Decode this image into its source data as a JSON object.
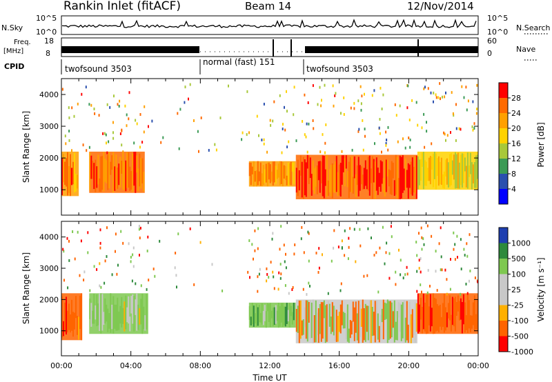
{
  "header": {
    "station": "Rankin Inlet (fitACF)",
    "beam": "Beam 14",
    "date": "12/Nov/2014"
  },
  "top_panels": {
    "nsky": {
      "label": "N.Sky",
      "ticks": [
        "10^5",
        "10^0"
      ]
    },
    "nsearch": {
      "label": "N.Search",
      "ticks": [
        "10^5",
        "10^0"
      ]
    },
    "freq": {
      "label_line1": "Freq.",
      "label_line2": "[MHz]",
      "ticks": [
        "18",
        "8"
      ]
    },
    "nave": {
      "label": "Nave",
      "ticks": [
        "60",
        "0"
      ]
    },
    "cpid": {
      "label": "CPID",
      "segments": [
        {
          "name": "twofsound 3503",
          "start": 0.0,
          "end": 8.0
        },
        {
          "name": "normal (fast) 151",
          "start": 8.0,
          "end": 14.0
        },
        {
          "name": "twofsound 3503",
          "start": 14.0,
          "end": 24.0
        }
      ]
    }
  },
  "chart_data": [
    {
      "type": "heatmap",
      "name": "power-panel",
      "title": "",
      "xlabel": "",
      "ylabel": "Slant Range [km]",
      "xlim": [
        0,
        24
      ],
      "ylim": [
        200,
        4500
      ],
      "yticks": [
        "1000",
        "2000",
        "3000",
        "4000"
      ],
      "colorbar": {
        "label": "Power [dB]",
        "ticks": [
          "28",
          "24",
          "20",
          "16",
          "12",
          "8",
          "4"
        ],
        "colors": [
          "#ff0000",
          "#ff6a00",
          "#ffa000",
          "#ffd200",
          "#a8c83a",
          "#3b9a55",
          "#2a4fae",
          "#0000ff"
        ]
      },
      "regions": [
        {
          "t0": 0.0,
          "t1": 1.0,
          "r0": 800,
          "r1": 2200,
          "value": 22
        },
        {
          "t0": 1.6,
          "t1": 4.8,
          "r0": 900,
          "r1": 2200,
          "value": 24
        },
        {
          "t0": 10.8,
          "t1": 13.5,
          "r0": 1100,
          "r1": 1900,
          "value": 20
        },
        {
          "t0": 13.5,
          "t1": 20.5,
          "r0": 700,
          "r1": 2100,
          "value": 26
        },
        {
          "t0": 20.5,
          "t1": 24.0,
          "r0": 1000,
          "r1": 2200,
          "value": 16
        }
      ]
    },
    {
      "type": "heatmap",
      "name": "velocity-panel",
      "title": "",
      "xlabel": "Time UT",
      "ylabel": "Slant Range [km]",
      "xlim": [
        0,
        24
      ],
      "ylim": [
        200,
        4500
      ],
      "xticks": [
        "00:00",
        "04:00",
        "08:00",
        "12:00",
        "16:00",
        "20:00",
        "00:00"
      ],
      "yticks": [
        "1000",
        "2000",
        "3000",
        "4000"
      ],
      "colorbar": {
        "label": "Velocity [m s⁻¹]",
        "ticks": [
          "1000",
          "500",
          "100",
          "25",
          "-25",
          "-100",
          "-500",
          "-1000"
        ],
        "colors": [
          "#1f3fb0",
          "#2e8a3c",
          "#7ec850",
          "#c8c8c8",
          "#c8c8c8",
          "#ffb000",
          "#ff6400",
          "#ff0000"
        ]
      },
      "regions": [
        {
          "t0": 0.0,
          "t1": 1.2,
          "r0": 700,
          "r1": 2200,
          "value": -300
        },
        {
          "t0": 1.6,
          "t1": 5.0,
          "r0": 900,
          "r1": 2200,
          "value": 200
        },
        {
          "t0": 10.8,
          "t1": 13.5,
          "r0": 1100,
          "r1": 1900,
          "value": 300
        },
        {
          "t0": 13.5,
          "t1": 20.5,
          "r0": 600,
          "r1": 2000,
          "value": 0
        },
        {
          "t0": 20.5,
          "t1": 24.0,
          "r0": 900,
          "r1": 2200,
          "value": -400
        }
      ]
    }
  ]
}
